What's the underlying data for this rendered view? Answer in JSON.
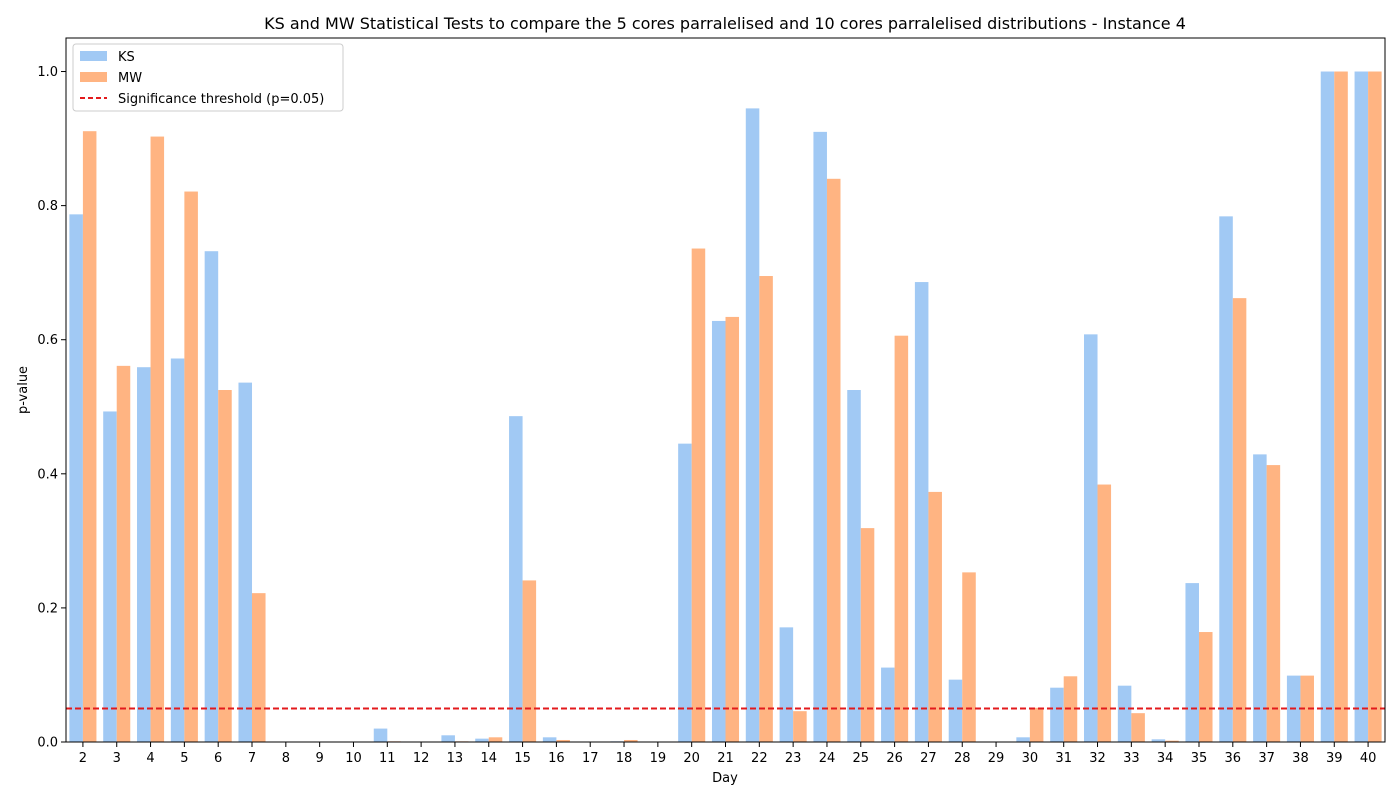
{
  "chart_data": {
    "type": "bar",
    "title": "KS and MW Statistical Tests to compare the 5 cores parralelised and 10 cores parralelised distributions - Instance 4",
    "xlabel": "Day",
    "ylabel": "p-value",
    "ylim": [
      0,
      1.05
    ],
    "yticks": [
      "0.0",
      "0.2",
      "0.4",
      "0.6",
      "0.8",
      "1.0"
    ],
    "legend_position": "top-left",
    "categories": [
      "2",
      "3",
      "4",
      "5",
      "6",
      "7",
      "8",
      "9",
      "10",
      "11",
      "12",
      "13",
      "14",
      "15",
      "16",
      "17",
      "18",
      "19",
      "20",
      "21",
      "22",
      "23",
      "24",
      "25",
      "26",
      "27",
      "28",
      "29",
      "30",
      "31",
      "32",
      "33",
      "34",
      "35",
      "36",
      "37",
      "38",
      "39",
      "40"
    ],
    "series": [
      {
        "name": "KS",
        "color": "#a1c9f4",
        "values": [
          0.787,
          0.493,
          0.559,
          0.572,
          0.732,
          0.536,
          0.0,
          0.0,
          0.0,
          0.02,
          0.0,
          0.01,
          0.005,
          0.486,
          0.007,
          0.0,
          0.001,
          0.0,
          0.445,
          0.628,
          0.945,
          0.171,
          0.91,
          0.525,
          0.111,
          0.686,
          0.093,
          0.0,
          0.007,
          0.081,
          0.608,
          0.084,
          0.004,
          0.237,
          0.784,
          0.429,
          0.099,
          1.0,
          1.0
        ]
      },
      {
        "name": "MW",
        "color": "#ffb482",
        "values": [
          0.911,
          0.561,
          0.903,
          0.821,
          0.525,
          0.222,
          0.0,
          0.0,
          0.0,
          0.001,
          0.0,
          0.001,
          0.007,
          0.241,
          0.003,
          0.0,
          0.003,
          0.0,
          0.736,
          0.634,
          0.695,
          0.046,
          0.84,
          0.319,
          0.606,
          0.373,
          0.253,
          0.0,
          0.051,
          0.098,
          0.384,
          0.043,
          0.002,
          0.164,
          0.662,
          0.413,
          0.099,
          1.0,
          1.0
        ]
      }
    ],
    "threshold": {
      "label": "Significance threshold (p=0.05)",
      "value": 0.05,
      "color": "#e31a1c"
    }
  }
}
